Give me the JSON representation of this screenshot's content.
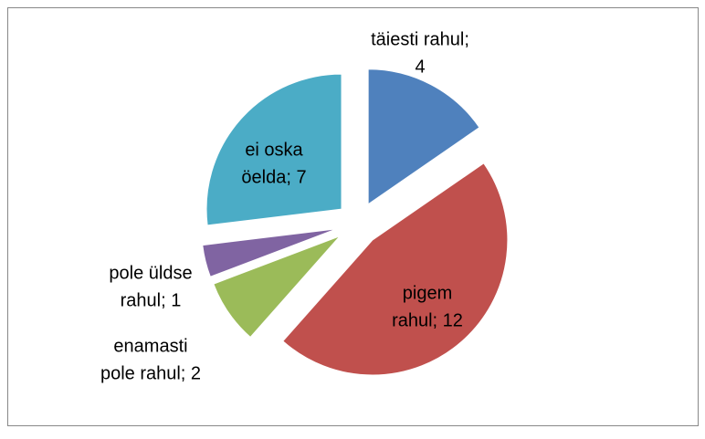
{
  "chart_data": {
    "type": "pie",
    "values": [
      4,
      12,
      2,
      1,
      7
    ],
    "value_labels": [
      [
        "täiesti rahul;",
        "4"
      ],
      [
        "pigem",
        "rahul; 12"
      ],
      [
        "enamasti",
        "pole rahul; 2"
      ],
      [
        "pole üldse",
        "rahul; 1"
      ],
      [
        "ei oska",
        "öelda; 7"
      ]
    ],
    "colors": [
      "#4f81bd",
      "#c0504d",
      "#9bbb59",
      "#8064a2",
      "#4bacc6"
    ]
  }
}
